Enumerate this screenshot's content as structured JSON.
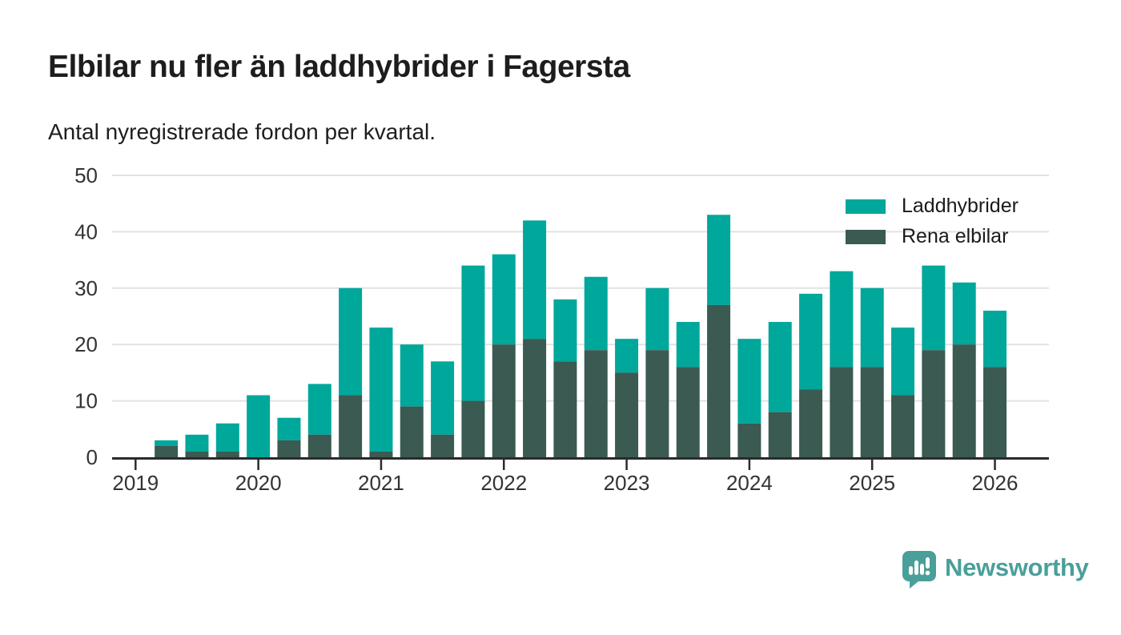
{
  "header": {
    "title": "Elbilar nu fler än laddhybrider i Fagersta",
    "subtitle": "Antal nyregistrerade fordon per kvartal."
  },
  "legend": {
    "items": [
      {
        "label": "Laddhybrider",
        "color": "#00a79b"
      },
      {
        "label": "Rena elbilar",
        "color": "#3a5a52"
      }
    ]
  },
  "footer": {
    "brand": "Newsworthy",
    "brand_color": "#4a9f9a",
    "logo_icon": "newsworthy-speech-bubble-barchart-icon"
  },
  "colors": {
    "laddhybrider": "#00a79b",
    "rena_elbilar": "#3a5a52",
    "gridline": "#e2e2e2",
    "axis": "#2b2b2b",
    "background": "#ffffff"
  },
  "chart_data": {
    "type": "bar",
    "stacked": true,
    "title": "Elbilar nu fler än laddhybrider i Fagersta",
    "subtitle": "Antal nyregistrerade fordon per kvartal.",
    "x": [
      "2019 Q2",
      "2019 Q3",
      "2019 Q4",
      "2020 Q1",
      "2020 Q2",
      "2020 Q3",
      "2020 Q4",
      "2021 Q1",
      "2021 Q2",
      "2021 Q3",
      "2021 Q4",
      "2022 Q1",
      "2022 Q2",
      "2022 Q3",
      "2022 Q4",
      "2023 Q1",
      "2023 Q2",
      "2023 Q3",
      "2023 Q4",
      "2024 Q1",
      "2024 Q2",
      "2024 Q3",
      "2024 Q4",
      "2025 Q1",
      "2025 Q2",
      "2025 Q3",
      "2025 Q4",
      "2026 Q1"
    ],
    "series": [
      {
        "name": "Rena elbilar",
        "color": "#3a5a52",
        "stack_order": "bottom",
        "values": [
          2,
          1,
          1,
          0,
          3,
          4,
          11,
          1,
          9,
          4,
          10,
          20,
          21,
          17,
          19,
          15,
          19,
          16,
          27,
          6,
          8,
          12,
          16,
          16,
          11,
          19,
          20,
          16
        ]
      },
      {
        "name": "Laddhybrider",
        "color": "#00a79b",
        "stack_order": "top",
        "values": [
          1,
          3,
          5,
          11,
          4,
          9,
          19,
          22,
          11,
          13,
          24,
          16,
          21,
          11,
          13,
          6,
          11,
          8,
          16,
          15,
          16,
          17,
          17,
          14,
          12,
          15,
          11,
          10
        ]
      }
    ],
    "x_tick_labels": [
      "2019",
      "2020",
      "2021",
      "2022",
      "2023",
      "2024",
      "2025",
      "2026"
    ],
    "y_ticks": [
      0,
      10,
      20,
      30,
      40,
      50
    ],
    "ylim": [
      0,
      50
    ],
    "grid": "horizontal",
    "legend_position": "top-right"
  }
}
